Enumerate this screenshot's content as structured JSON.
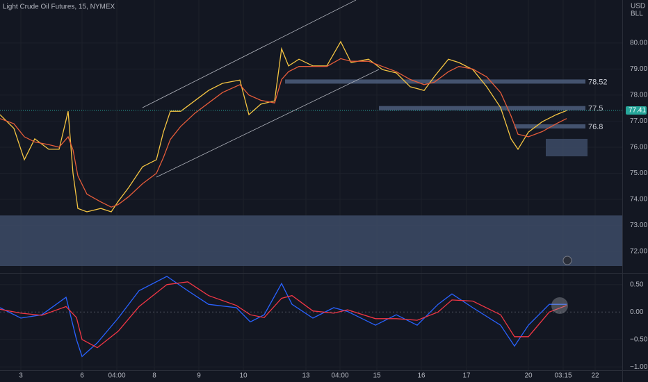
{
  "chart_data": [
    {
      "type": "line",
      "title": "Light Crude Oil Futures, 15, NYMEX",
      "currency": "USD",
      "unit": "BLL",
      "xlim": [
        0,
        895
      ],
      "ylim": [
        71.2,
        81.65
      ],
      "xticks": [
        {
          "value": 30,
          "label": "3"
        },
        {
          "value": 118,
          "label": "6"
        },
        {
          "value": 168,
          "label": "04:00"
        },
        {
          "value": 222,
          "label": "8"
        },
        {
          "value": 286,
          "label": "9"
        },
        {
          "value": 350,
          "label": "10"
        },
        {
          "value": 440,
          "label": "13"
        },
        {
          "value": 489,
          "label": "04:00"
        },
        {
          "value": 542,
          "label": "15"
        },
        {
          "value": 606,
          "label": "16"
        },
        {
          "value": 671,
          "label": "17"
        },
        {
          "value": 760,
          "label": "20"
        },
        {
          "value": 810,
          "label": "03:15"
        },
        {
          "value": 856,
          "label": "22"
        }
      ],
      "yticks": [
        {
          "value": 72,
          "label": "72.00"
        },
        {
          "value": 73,
          "label": "73.00"
        },
        {
          "value": 74,
          "label": "74.00"
        },
        {
          "value": 75,
          "label": "75.00"
        },
        {
          "value": 76,
          "label": "76.00"
        },
        {
          "value": 77,
          "label": "77.00"
        },
        {
          "value": 78,
          "label": "78.00"
        },
        {
          "value": 79,
          "label": "79.00"
        },
        {
          "value": 80,
          "label": "80.00"
        }
      ],
      "grid": true,
      "x": [
        0,
        20,
        35,
        50,
        70,
        85,
        98,
        105,
        112,
        125,
        145,
        160,
        170,
        185,
        205,
        225,
        235,
        245,
        260,
        280,
        300,
        320,
        345,
        358,
        375,
        395,
        405,
        415,
        430,
        450,
        470,
        490,
        505,
        530,
        550,
        570,
        590,
        610,
        625,
        645,
        660,
        680,
        700,
        720,
        735,
        745,
        760,
        780,
        800,
        815
      ],
      "series": [
        {
          "color": "#f5c542",
          "values": [
            77.25,
            76.72,
            75.52,
            76.32,
            75.92,
            75.92,
            77.38,
            75.0,
            73.65,
            73.52,
            73.65,
            73.52,
            73.92,
            74.45,
            75.25,
            75.52,
            76.58,
            77.38,
            77.38,
            77.78,
            78.18,
            78.45,
            78.58,
            77.25,
            77.65,
            77.78,
            79.78,
            79.12,
            79.38,
            79.12,
            79.12,
            80.05,
            79.25,
            79.38,
            78.98,
            78.85,
            78.32,
            78.18,
            78.72,
            79.38,
            79.25,
            78.98,
            78.32,
            77.52,
            76.32,
            75.92,
            76.58,
            76.98,
            77.25,
            77.41
          ]
        },
        {
          "color": "#e65c3a",
          "values": [
            77.1,
            76.9,
            76.4,
            76.2,
            76.1,
            76.0,
            76.4,
            75.9,
            74.9,
            74.2,
            73.9,
            73.7,
            73.8,
            74.1,
            74.6,
            75.0,
            75.6,
            76.3,
            76.8,
            77.3,
            77.7,
            78.1,
            78.4,
            78.0,
            77.8,
            77.7,
            78.6,
            78.9,
            79.1,
            79.1,
            79.1,
            79.4,
            79.3,
            79.3,
            79.1,
            78.9,
            78.6,
            78.4,
            78.5,
            78.9,
            79.1,
            79.0,
            78.7,
            78.1,
            77.2,
            76.5,
            76.4,
            76.6,
            76.9,
            77.1
          ]
        }
      ],
      "levels": [
        {
          "value": 78.52,
          "x": 410
        },
        {
          "value": 77.5,
          "x": 545
        },
        {
          "value": 76.8,
          "x": 740
        }
      ],
      "zones": [
        {
          "from": 71.44,
          "to": 73.38,
          "xstart": 0,
          "xend": 895
        },
        {
          "from": 75.65,
          "to": 76.32,
          "xstart": 785,
          "xend": 845
        }
      ]
    },
    {
      "type": "line",
      "xlim": [
        0,
        895
      ],
      "ylim": [
        -1.06,
        0.7
      ],
      "yticks": [
        {
          "value": 0.5,
          "label": "0.50"
        },
        {
          "value": 0,
          "label": "0.00"
        },
        {
          "value": -0.5,
          "label": "−0.50"
        },
        {
          "value": -1,
          "label": "−1.00"
        }
      ],
      "x": [
        0,
        30,
        60,
        95,
        110,
        118,
        140,
        170,
        200,
        240,
        270,
        300,
        340,
        360,
        380,
        405,
        420,
        450,
        480,
        500,
        540,
        570,
        600,
        630,
        650,
        680,
        720,
        740,
        760,
        790,
        815
      ],
      "series": [
        {
          "color": "#2962ff",
          "values": [
            0.08,
            -0.11,
            -0.05,
            0.27,
            -0.5,
            -0.81,
            -0.56,
            -0.11,
            0.39,
            0.65,
            0.39,
            0.14,
            0.08,
            -0.18,
            -0.05,
            0.52,
            0.14,
            -0.11,
            0.08,
            0.01,
            -0.24,
            -0.05,
            -0.24,
            0.14,
            0.33,
            0.08,
            -0.24,
            -0.62,
            -0.24,
            0.14,
            0.14
          ]
        },
        {
          "color": "#f23645",
          "values": [
            0.05,
            -0.02,
            -0.06,
            0.1,
            -0.1,
            -0.5,
            -0.65,
            -0.35,
            0.1,
            0.5,
            0.55,
            0.3,
            0.12,
            -0.05,
            -0.1,
            0.25,
            0.3,
            0.02,
            -0.02,
            0.04,
            -0.12,
            -0.12,
            -0.15,
            0.0,
            0.22,
            0.2,
            -0.05,
            -0.45,
            -0.45,
            0.0,
            0.12
          ]
        }
      ]
    }
  ]
}
